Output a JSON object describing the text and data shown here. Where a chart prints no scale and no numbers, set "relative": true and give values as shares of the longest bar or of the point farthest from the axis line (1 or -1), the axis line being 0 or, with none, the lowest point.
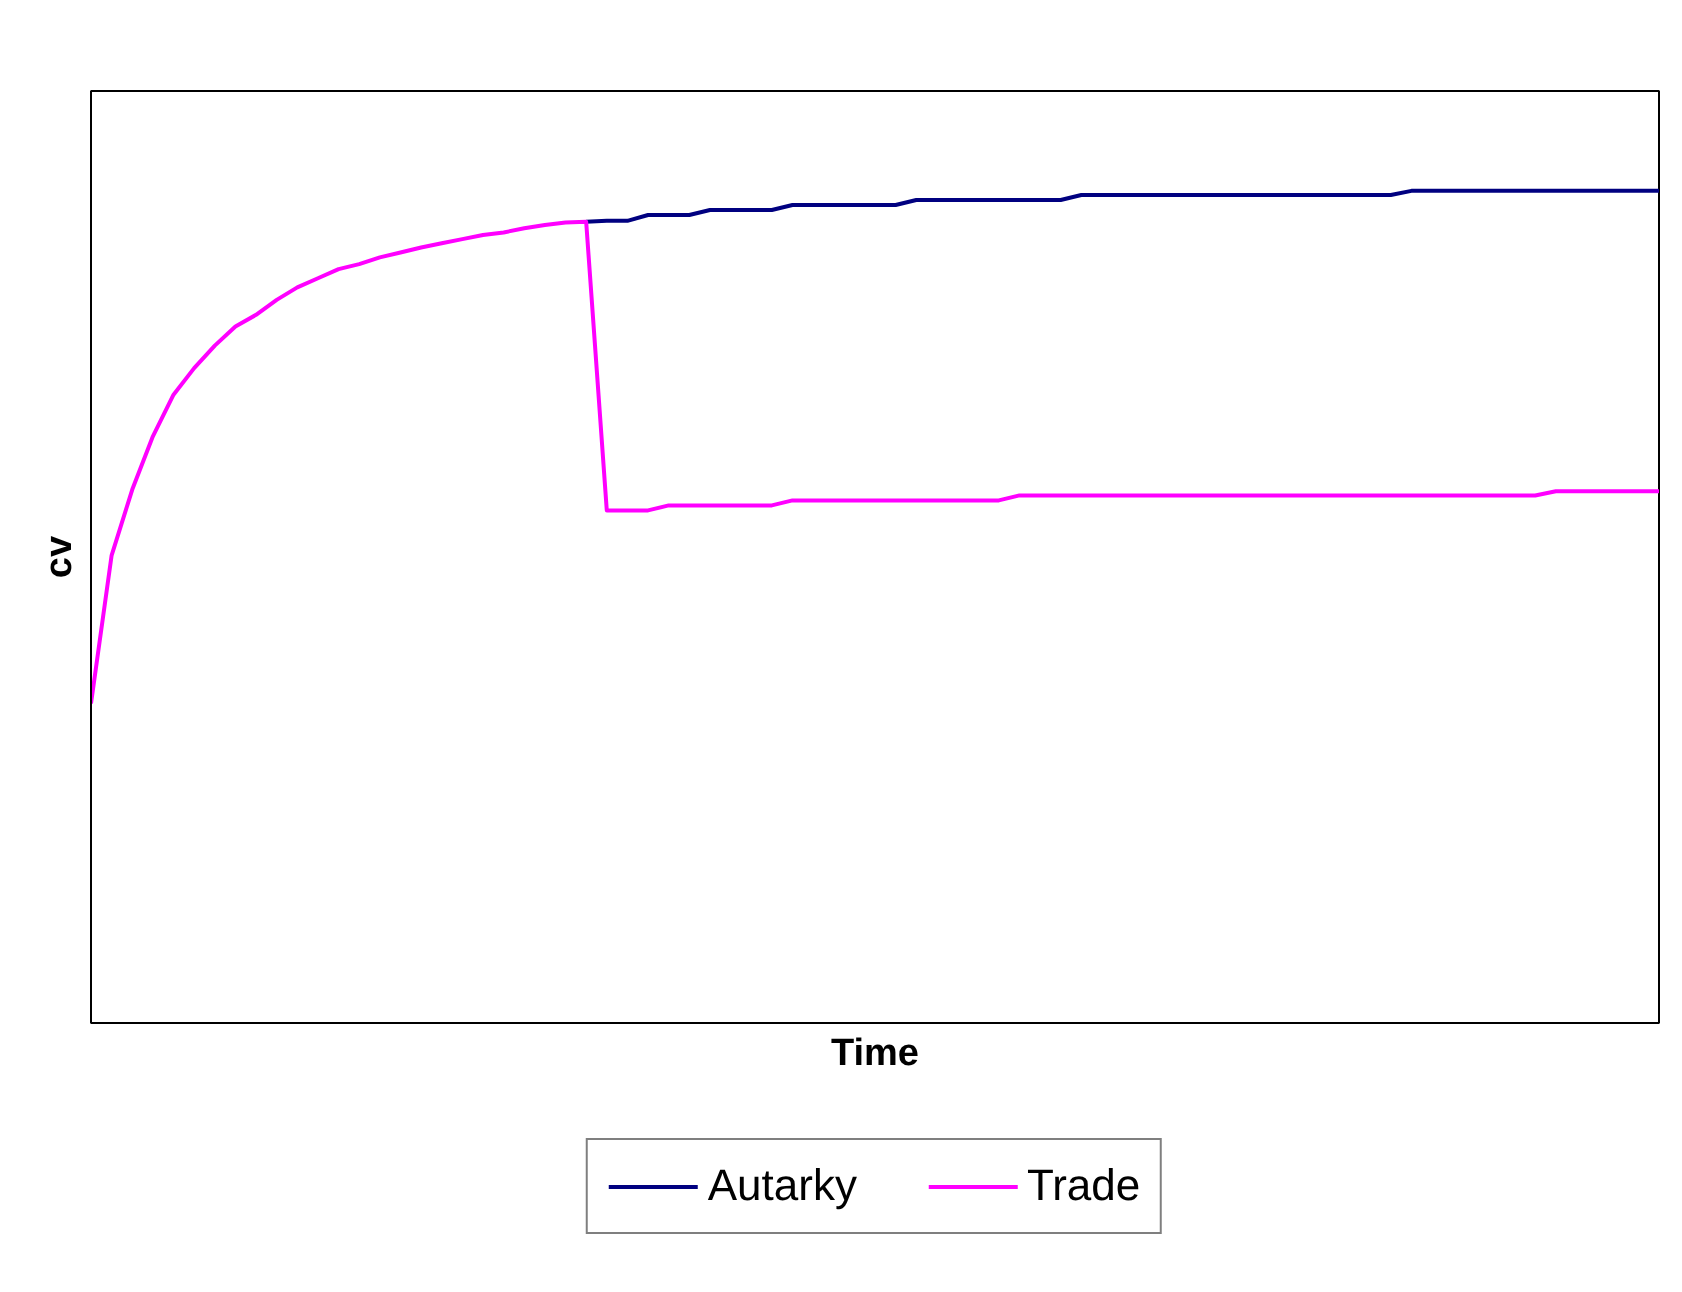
{
  "chart_data": {
    "type": "line",
    "xlabel": "Time",
    "ylabel": "cv",
    "relative": true,
    "legend": "bottom",
    "grid": false,
    "categories": [
      null,
      null,
      null,
      null,
      null,
      null,
      null,
      null,
      null,
      null,
      null,
      null,
      null,
      null,
      null,
      null,
      null,
      null,
      null,
      null,
      null,
      null,
      null,
      null,
      null,
      null,
      null,
      null,
      null,
      null,
      null,
      null,
      null,
      null,
      null,
      null,
      null,
      null,
      null,
      null,
      null,
      null,
      null,
      null,
      null,
      null,
      null,
      null,
      null,
      null,
      null,
      null,
      null,
      null,
      null,
      null,
      null,
      null,
      null,
      null,
      null,
      null,
      null,
      null,
      null,
      null,
      null,
      null,
      null,
      null,
      null,
      null,
      null,
      null,
      null,
      null,
      null
    ],
    "series": [
      {
        "name": "Autarky",
        "color": "#000080",
        "values": [
          null,
          null,
          null,
          null,
          null,
          null,
          null,
          null,
          null,
          null,
          null,
          null,
          null,
          null,
          null,
          null,
          null,
          null,
          null,
          null,
          null,
          null,
          null,
          null,
          0.963,
          0.964,
          0.964,
          0.971,
          0.971,
          0.971,
          0.977,
          0.977,
          0.977,
          0.977,
          0.983,
          0.983,
          0.983,
          0.983,
          0.983,
          0.983,
          0.989,
          0.989,
          0.989,
          0.989,
          0.989,
          0.989,
          0.989,
          0.989,
          0.995,
          0.995,
          0.995,
          0.995,
          0.995,
          0.995,
          0.995,
          0.995,
          0.995,
          0.995,
          0.995,
          0.995,
          0.995,
          0.995,
          0.995,
          0.995,
          1.0,
          1.0,
          1.0,
          1.0,
          1.0,
          1.0,
          1.0,
          1.0,
          1.0,
          1.0,
          1.0,
          1.0,
          1.0
        ]
      },
      {
        "name": "Trade",
        "color": "#ff00ff",
        "values": [
          0.384,
          0.562,
          0.641,
          0.705,
          0.755,
          0.787,
          0.814,
          0.837,
          0.851,
          0.869,
          0.884,
          0.895,
          0.906,
          0.912,
          0.92,
          0.926,
          0.932,
          0.937,
          0.942,
          0.947,
          0.95,
          0.955,
          0.959,
          0.962,
          0.963,
          0.616,
          0.616,
          0.616,
          0.622,
          0.622,
          0.622,
          0.622,
          0.622,
          0.622,
          0.628,
          0.628,
          0.628,
          0.628,
          0.628,
          0.628,
          0.628,
          0.628,
          0.628,
          0.628,
          0.628,
          0.634,
          0.634,
          0.634,
          0.634,
          0.634,
          0.634,
          0.634,
          0.634,
          0.634,
          0.634,
          0.634,
          0.634,
          0.634,
          0.634,
          0.634,
          0.634,
          0.634,
          0.634,
          0.634,
          0.634,
          0.634,
          0.634,
          0.634,
          0.634,
          0.634,
          0.634,
          0.639,
          0.639,
          0.639,
          0.639,
          0.639,
          0.639
        ]
      }
    ]
  }
}
